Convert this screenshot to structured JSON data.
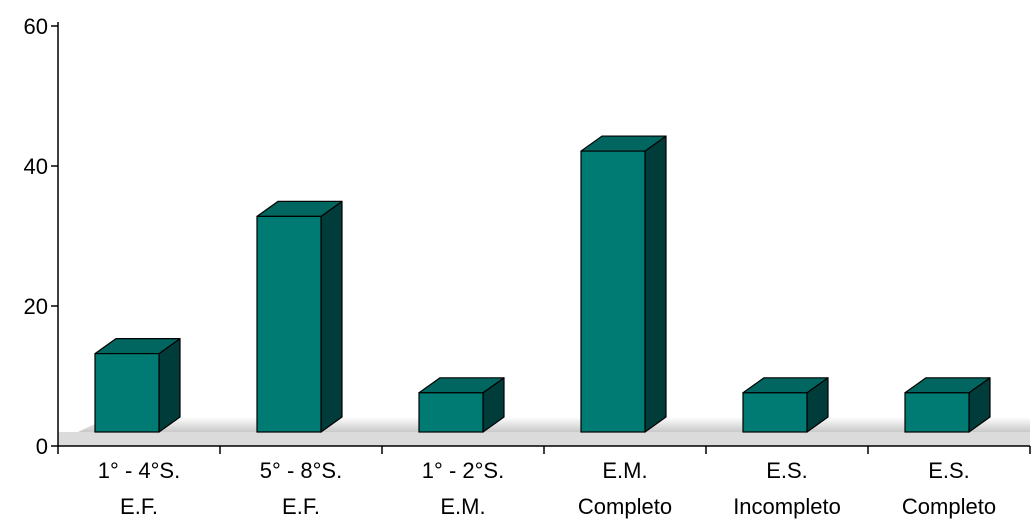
{
  "chart_data": {
    "type": "bar",
    "style": "3d",
    "categories": [
      [
        "1° - 4°S.",
        "E.F."
      ],
      [
        "5° - 8°S.",
        "E.F."
      ],
      [
        "1° - 2°S.",
        "E.M."
      ],
      [
        "E.M.",
        "Completo"
      ],
      [
        "E.S.",
        "Incompleto"
      ],
      [
        "E.S.",
        "Completo"
      ]
    ],
    "values": [
      12,
      33,
      6,
      43,
      6,
      6
    ],
    "ylim": [
      0,
      60
    ],
    "yticks": [
      0,
      20,
      40,
      60
    ],
    "title": "",
    "xlabel": "",
    "ylabel": "",
    "grid": false,
    "colors": {
      "front": "#007b73",
      "side": "#003c3a",
      "top": "#00665f",
      "outline": "#000000",
      "floor": "#d0d0d0"
    }
  }
}
